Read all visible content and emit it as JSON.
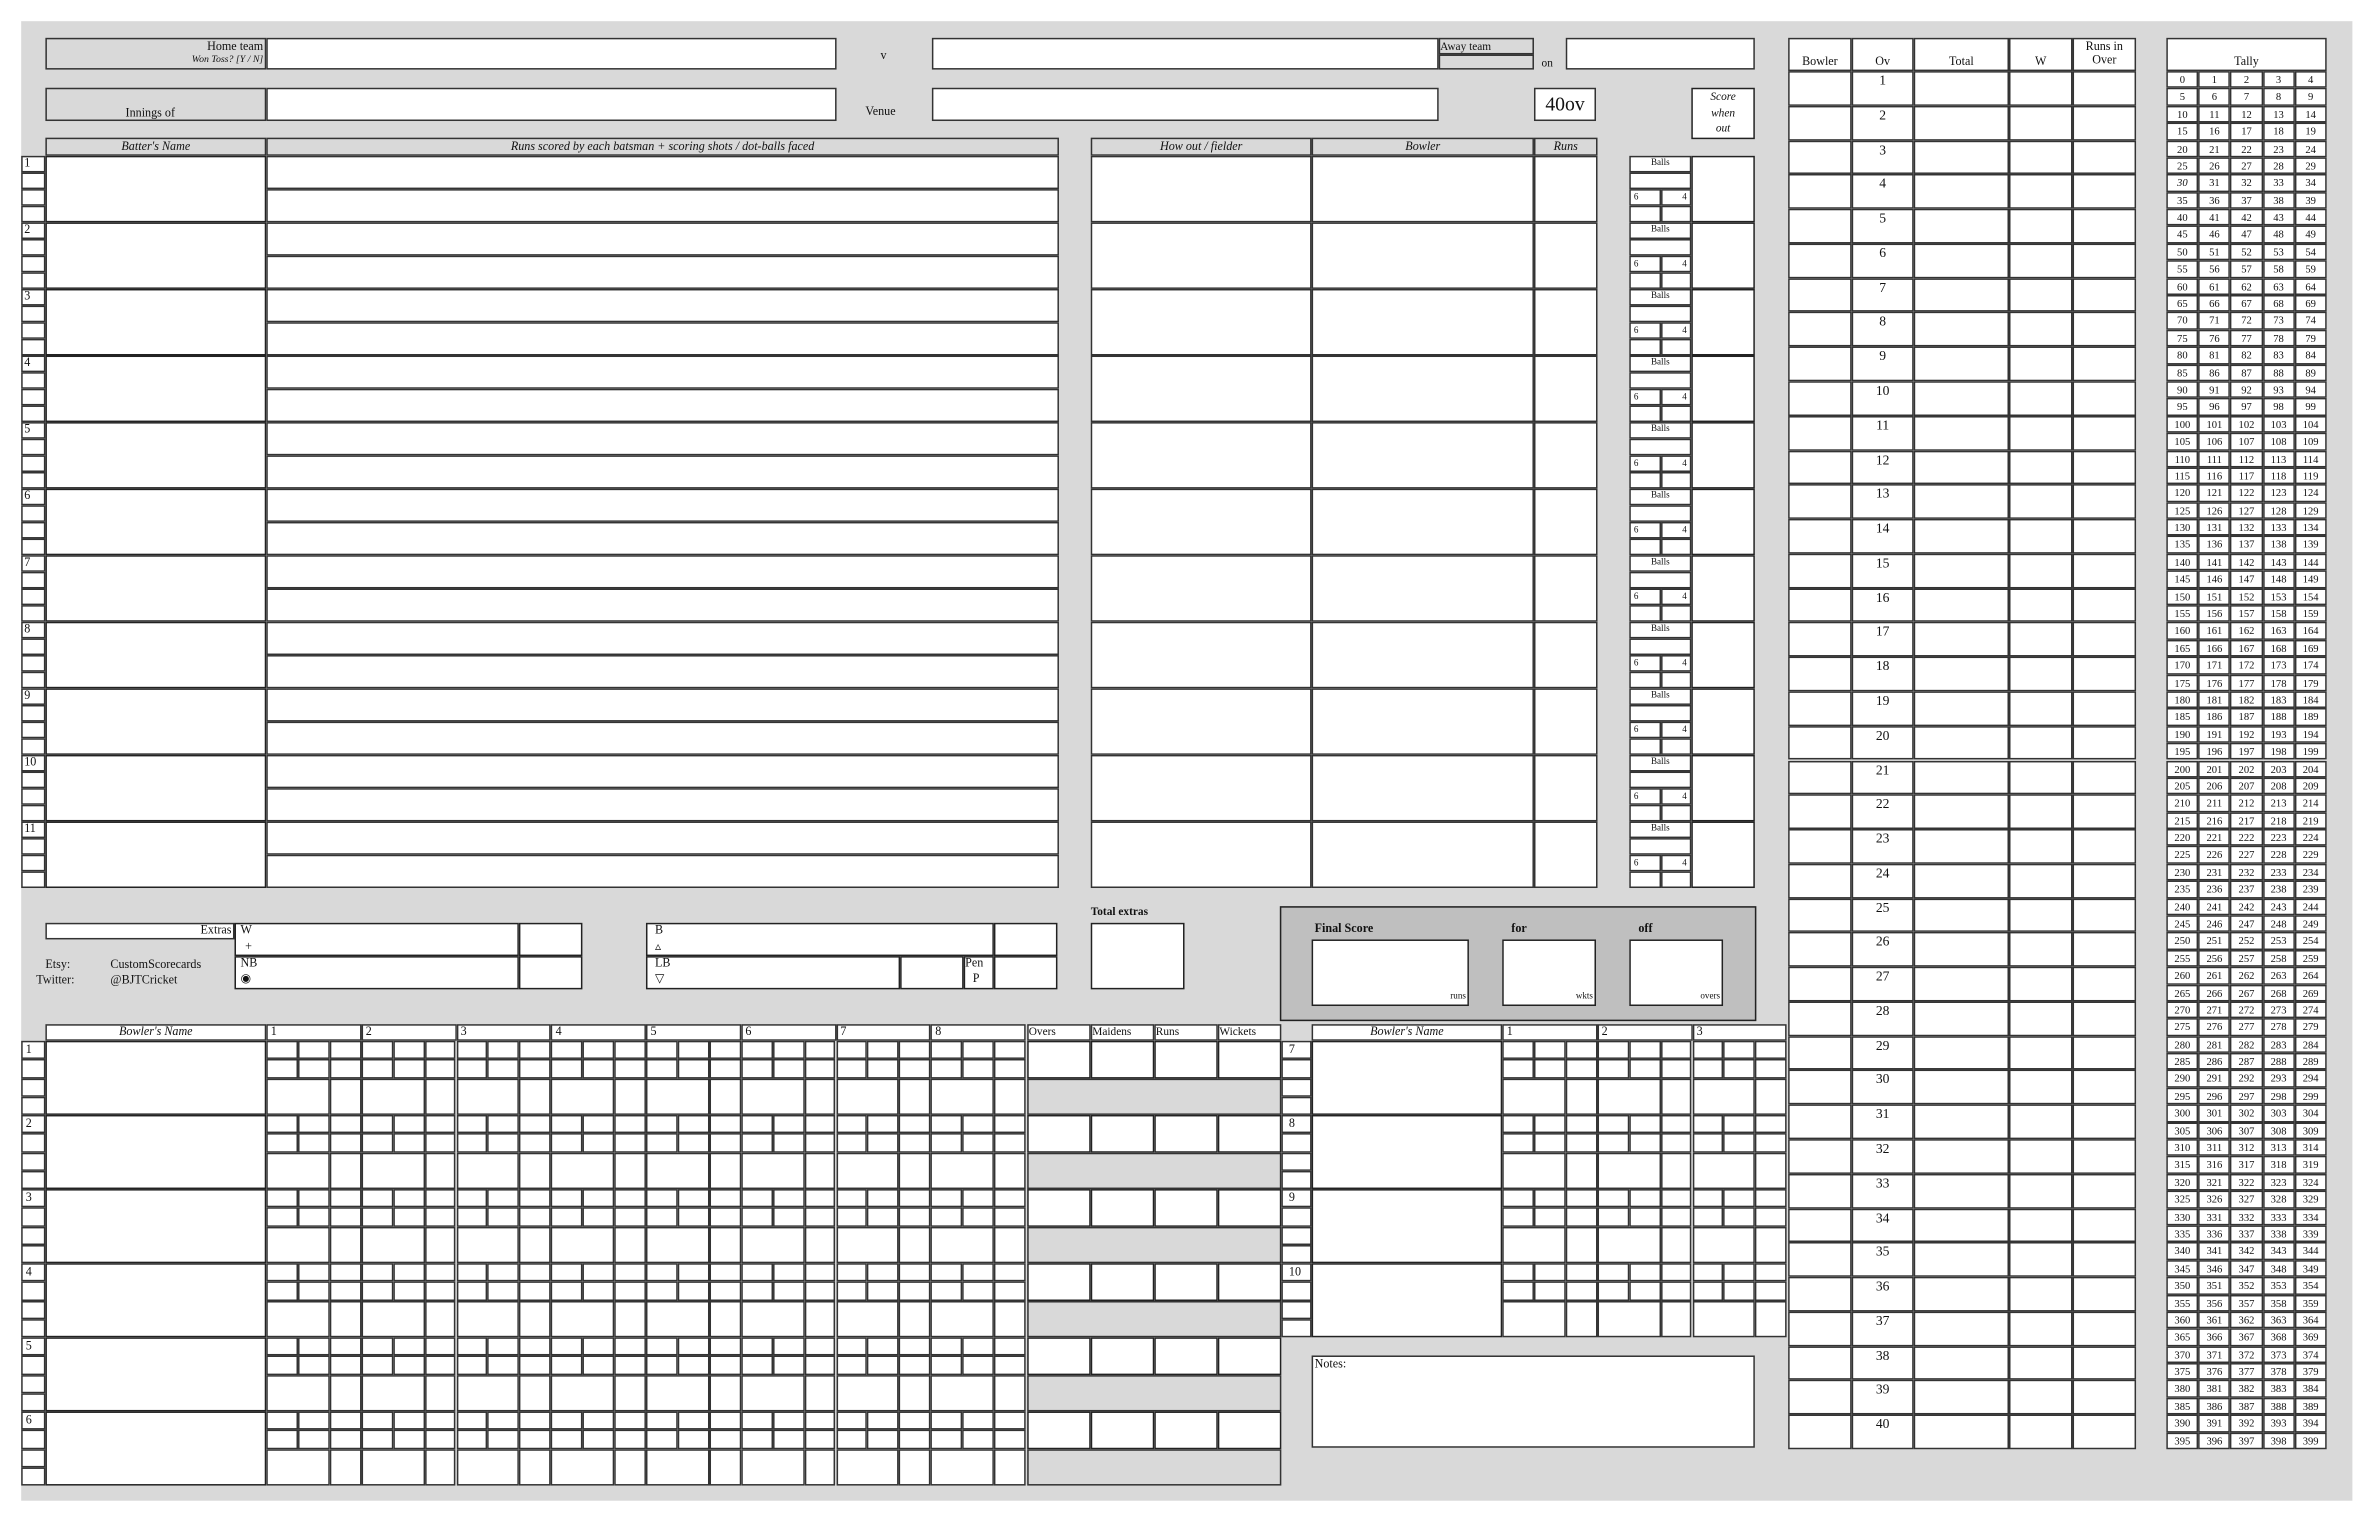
{
  "header": {
    "home_team_label": "Home team",
    "won_toss_label": "Won Toss? [Y / N]",
    "v_label": "v",
    "away_team_label": "Away team",
    "on_label": "on",
    "innings_label": "Innings of",
    "venue_label": "Venue",
    "format": "40ov",
    "score_when_out_label": [
      "Score",
      "when",
      "out"
    ]
  },
  "inputs": {
    "home_team": "",
    "away_team": "",
    "date": "",
    "innings_of": "",
    "venue": ""
  },
  "batting": {
    "headers": {
      "name": "Batter's Name",
      "runs": "Runs scored by each batsman + scoring shots / dot-balls faced",
      "how_out": "How out / fielder",
      "bowler": "Bowler",
      "runs_total": "Runs"
    },
    "rows": [
      "1",
      "2",
      "3",
      "4",
      "5",
      "6",
      "7",
      "8",
      "9",
      "10",
      "11"
    ],
    "balls_label": "Balls",
    "six_label": "6",
    "four_label": "4"
  },
  "extras": {
    "label": "Extras",
    "wides": "W",
    "wides_symbol": "+",
    "no_balls": "NB",
    "no_balls_symbol": "◉",
    "byes": "B",
    "byes_symbol": "▵",
    "leg_byes": "LB",
    "leg_byes_symbol": "▽",
    "penalty": "Pen",
    "penalty_symbol": "P",
    "total_label": "Total extras"
  },
  "credits": {
    "etsy_label": "Etsy:",
    "etsy": "CustomScorecards",
    "twitter_label": "Twitter:",
    "twitter": "@BJTCricket"
  },
  "final_score": {
    "label": "Final Score",
    "for_label": "for",
    "off_label": "off",
    "runs_unit": "runs",
    "wkts_unit": "wkts",
    "overs_unit": "overs"
  },
  "bowling": {
    "name_header": "Bowler's Name",
    "over_headers": [
      "1",
      "2",
      "3",
      "4",
      "5",
      "6",
      "7",
      "8"
    ],
    "right_over_headers": [
      "1",
      "2",
      "3"
    ],
    "summary_headers": [
      "Overs",
      "Maidens",
      "Runs",
      "Wickets"
    ],
    "left_rows": [
      "1",
      "2",
      "3",
      "4",
      "5",
      "6"
    ],
    "right_rows": [
      "7",
      "8",
      "9",
      "10"
    ]
  },
  "over_log": {
    "headers": [
      "Bowler",
      "Ov",
      "Total",
      "W",
      "Runs in Over"
    ],
    "overs": [
      "1",
      "2",
      "3",
      "4",
      "5",
      "6",
      "7",
      "8",
      "9",
      "10",
      "11",
      "12",
      "13",
      "14",
      "15",
      "16",
      "17",
      "18",
      "19",
      "20",
      "21",
      "22",
      "23",
      "24",
      "25",
      "26",
      "27",
      "28",
      "29",
      "30",
      "31",
      "32",
      "33",
      "34",
      "35",
      "36",
      "37",
      "38",
      "39",
      "40"
    ]
  },
  "tally": {
    "label": "Tally",
    "first": 0,
    "last": 399,
    "columns": 5,
    "italic_value": 30
  },
  "notes": {
    "label": "Notes:"
  },
  "colors": {
    "background": "#d9d9d9",
    "final_score_panel": "#bfbfbf",
    "cell": "#ffffff",
    "line": "#222222"
  }
}
